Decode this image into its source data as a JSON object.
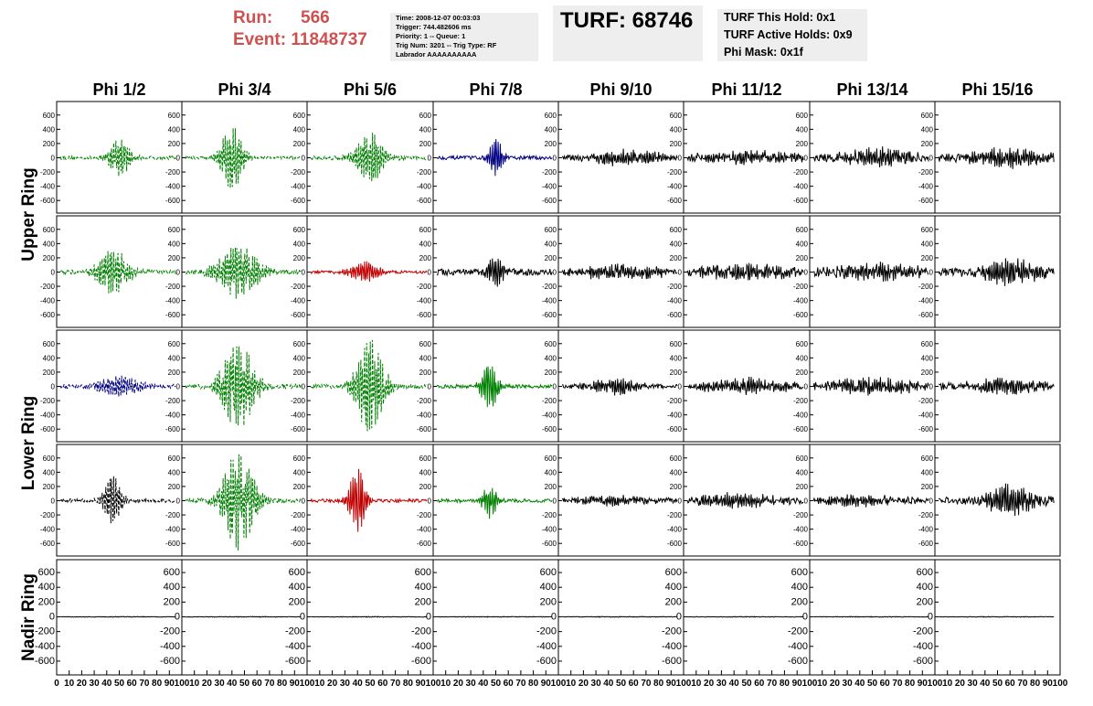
{
  "header": {
    "run_label": "Run:",
    "run_value": "566",
    "event_label": "Event:",
    "event_value": "11848737",
    "info_lines": [
      "Time: 2008-12-07 00:03:03",
      "Trigger: 744.482606 ms",
      "Priority: 1 -- Queue: 1",
      "Trig Num: 3201 -- Trig Type: RF",
      "Labrador AAAAAAAAAA"
    ],
    "turf_label": "TURF: 68746",
    "turf_status": [
      "TURF This Hold: 0x1",
      "TURF Active Holds: 0x9",
      "Phi Mask: 0x1f"
    ]
  },
  "colors": {
    "black": "#000000",
    "green": "#008000",
    "blue": "#000080",
    "red": "#c00000",
    "header_red": "#d05050",
    "box_gray": "#eeeeee"
  },
  "chart_data": {
    "type": "line",
    "columns": [
      "Phi 1/2",
      "Phi 3/4",
      "Phi 5/6",
      "Phi 7/8",
      "Phi 9/10",
      "Phi 11/12",
      "Phi 13/14",
      "Phi 15/16"
    ],
    "rows": [
      "Upper Ring",
      "Upper Ring",
      "Lower Ring",
      "Lower Ring",
      "Nadir Ring"
    ],
    "row_labels": [
      {
        "text": "Upper Ring",
        "rows": [
          0,
          1
        ]
      },
      {
        "text": "Lower Ring",
        "rows": [
          2,
          3
        ]
      },
      {
        "text": "Nadir Ring",
        "rows": [
          4,
          4
        ]
      }
    ],
    "xlim": [
      0,
      100
    ],
    "ylim": [
      -700,
      700
    ],
    "x_tick_labels": [
      "0",
      "10",
      "20",
      "30",
      "40",
      "50",
      "60",
      "70",
      "80",
      "90",
      "100"
    ],
    "y_ticks": [
      600,
      400,
      200,
      0,
      -200,
      -400,
      -600
    ],
    "y_tick_labels": [
      "600",
      "400",
      "200",
      "0",
      "-200",
      "-400",
      "-600"
    ],
    "grid": false,
    "panels": [
      [
        {
          "color": "green",
          "dash": true,
          "center": 50,
          "width": 9,
          "amp": 280,
          "noise": 25
        },
        {
          "color": "green",
          "dash": true,
          "center": 40,
          "width": 10,
          "amp": 440,
          "noise": 20
        },
        {
          "color": "green",
          "dash": true,
          "center": 50,
          "width": 12,
          "amp": 330,
          "noise": 30
        },
        {
          "color": "blue",
          "dash": false,
          "center": 50,
          "width": 6,
          "amp": 260,
          "noise": 25
        },
        {
          "color": "black",
          "dash": false,
          "center": 55,
          "width": 30,
          "amp": 90,
          "noise": 45
        },
        {
          "color": "black",
          "dash": false,
          "center": 50,
          "width": 40,
          "amp": 80,
          "noise": 45
        },
        {
          "color": "black",
          "dash": false,
          "center": 55,
          "width": 30,
          "amp": 110,
          "noise": 55
        },
        {
          "color": "black",
          "dash": false,
          "center": 60,
          "width": 30,
          "amp": 120,
          "noise": 55
        }
      ],
      [
        {
          "color": "green",
          "dash": true,
          "center": 45,
          "width": 14,
          "amp": 300,
          "noise": 30
        },
        {
          "color": "green",
          "dash": true,
          "center": 45,
          "width": 18,
          "amp": 360,
          "noise": 30
        },
        {
          "color": "red",
          "dash": false,
          "center": 45,
          "width": 14,
          "amp": 140,
          "noise": 20
        },
        {
          "color": "black",
          "dash": false,
          "center": 50,
          "width": 7,
          "amp": 230,
          "noise": 45
        },
        {
          "color": "black",
          "dash": false,
          "center": 50,
          "width": 40,
          "amp": 90,
          "noise": 45
        },
        {
          "color": "black",
          "dash": false,
          "center": 50,
          "width": 40,
          "amp": 90,
          "noise": 50
        },
        {
          "color": "black",
          "dash": false,
          "center": 55,
          "width": 35,
          "amp": 100,
          "noise": 55
        },
        {
          "color": "black",
          "dash": false,
          "center": 60,
          "width": 25,
          "amp": 160,
          "noise": 55
        }
      ],
      [
        {
          "color": "blue",
          "dash": true,
          "center": 50,
          "width": 18,
          "amp": 150,
          "noise": 30
        },
        {
          "color": "green",
          "dash": true,
          "center": 45,
          "width": 14,
          "amp": 620,
          "noise": 30
        },
        {
          "color": "green",
          "dash": true,
          "center": 50,
          "width": 12,
          "amp": 650,
          "noise": 30
        },
        {
          "color": "green",
          "dash": false,
          "center": 45,
          "width": 7,
          "amp": 340,
          "noise": 25
        },
        {
          "color": "black",
          "dash": false,
          "center": 45,
          "width": 20,
          "amp": 110,
          "noise": 30
        },
        {
          "color": "black",
          "dash": false,
          "center": 50,
          "width": 35,
          "amp": 100,
          "noise": 40
        },
        {
          "color": "black",
          "dash": false,
          "center": 50,
          "width": 35,
          "amp": 110,
          "noise": 45
        },
        {
          "color": "black",
          "dash": false,
          "center": 55,
          "width": 30,
          "amp": 100,
          "noise": 45
        }
      ],
      [
        {
          "color": "black",
          "dash": true,
          "center": 45,
          "width": 8,
          "amp": 340,
          "noise": 25
        },
        {
          "color": "green",
          "dash": true,
          "center": 45,
          "width": 14,
          "amp": 680,
          "noise": 30
        },
        {
          "color": "red",
          "dash": false,
          "center": 40,
          "width": 7,
          "amp": 460,
          "noise": 25
        },
        {
          "color": "green",
          "dash": false,
          "center": 45,
          "width": 6,
          "amp": 240,
          "noise": 25
        },
        {
          "color": "black",
          "dash": false,
          "center": 45,
          "width": 30,
          "amp": 60,
          "noise": 35
        },
        {
          "color": "black",
          "dash": false,
          "center": 40,
          "width": 35,
          "amp": 90,
          "noise": 40
        },
        {
          "color": "black",
          "dash": false,
          "center": 40,
          "width": 35,
          "amp": 70,
          "noise": 40
        },
        {
          "color": "black",
          "dash": false,
          "center": 60,
          "width": 20,
          "amp": 200,
          "noise": 50
        }
      ],
      [
        {
          "color": "black",
          "dash": false,
          "center": 50,
          "width": 40,
          "amp": 4,
          "noise": 3
        },
        {
          "color": "black",
          "dash": false,
          "center": 50,
          "width": 40,
          "amp": 4,
          "noise": 3
        },
        {
          "color": "black",
          "dash": false,
          "center": 50,
          "width": 40,
          "amp": 4,
          "noise": 3
        },
        {
          "color": "black",
          "dash": false,
          "center": 50,
          "width": 40,
          "amp": 4,
          "noise": 3
        },
        {
          "color": "black",
          "dash": false,
          "center": 50,
          "width": 40,
          "amp": 4,
          "noise": 3
        },
        {
          "color": "black",
          "dash": false,
          "center": 50,
          "width": 40,
          "amp": 4,
          "noise": 3
        },
        {
          "color": "black",
          "dash": false,
          "center": 50,
          "width": 40,
          "amp": 4,
          "noise": 3
        },
        {
          "color": "black",
          "dash": false,
          "center": 50,
          "width": 40,
          "amp": 4,
          "noise": 3
        }
      ]
    ]
  }
}
